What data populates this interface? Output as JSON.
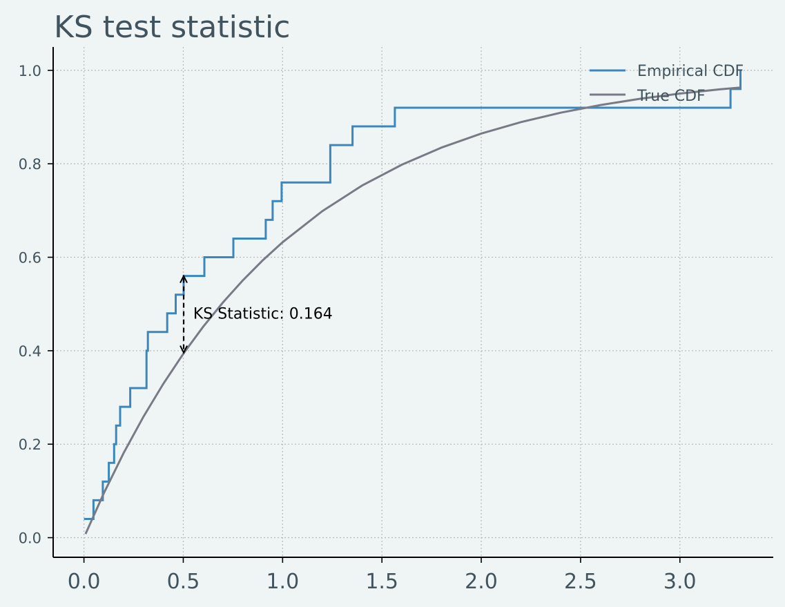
{
  "chart_data": {
    "type": "line",
    "title": "KS test statistic",
    "xlabel": "",
    "ylabel": "",
    "xlim": [
      -0.155,
      3.47
    ],
    "ylim": [
      -0.042,
      1.05
    ],
    "xticks": [
      0.0,
      0.5,
      1.0,
      1.5,
      2.0,
      2.5,
      3.0
    ],
    "xtick_labels": [
      "0.0",
      "0.5",
      "1.0",
      "1.5",
      "2.0",
      "2.5",
      "3.0"
    ],
    "yticks": [
      0.0,
      0.2,
      0.4,
      0.6,
      0.8,
      1.0
    ],
    "ytick_labels": [
      "0.0",
      "0.2",
      "0.4",
      "0.6",
      "0.8",
      "1.0"
    ],
    "grid": true,
    "legend_position": "top-right",
    "series": [
      {
        "name": "Empirical CDF",
        "kind": "step",
        "color": "#3a87bd",
        "x": [
          0.0,
          0.048,
          0.048,
          0.095,
          0.095,
          0.125,
          0.125,
          0.152,
          0.152,
          0.162,
          0.162,
          0.182,
          0.182,
          0.233,
          0.233,
          0.315,
          0.315,
          0.322,
          0.322,
          0.419,
          0.419,
          0.462,
          0.462,
          0.502,
          0.502,
          0.606,
          0.606,
          0.752,
          0.752,
          0.915,
          0.915,
          0.95,
          0.95,
          0.995,
          0.995,
          1.24,
          1.24,
          1.352,
          1.352,
          1.565,
          1.565,
          3.255,
          3.255,
          3.305,
          3.305
        ],
        "y": [
          0.04,
          0.04,
          0.08,
          0.08,
          0.12,
          0.12,
          0.16,
          0.16,
          0.2,
          0.2,
          0.24,
          0.24,
          0.28,
          0.28,
          0.32,
          0.32,
          0.4,
          0.4,
          0.44,
          0.44,
          0.48,
          0.48,
          0.52,
          0.52,
          0.56,
          0.56,
          0.6,
          0.6,
          0.64,
          0.64,
          0.68,
          0.68,
          0.72,
          0.72,
          0.76,
          0.76,
          0.84,
          0.84,
          0.88,
          0.88,
          0.92,
          0.92,
          0.96,
          0.96,
          1.0
        ]
      },
      {
        "name": "True CDF",
        "kind": "line",
        "color": "#787b86",
        "x": [
          0.008,
          0.1,
          0.2,
          0.3,
          0.4,
          0.5,
          0.6,
          0.7,
          0.8,
          0.9,
          1.0,
          1.2,
          1.4,
          1.6,
          1.8,
          2.0,
          2.2,
          2.4,
          2.6,
          2.8,
          3.0,
          3.2,
          3.305
        ],
        "y": [
          0.008,
          0.0952,
          0.1813,
          0.2592,
          0.3297,
          0.3935,
          0.4512,
          0.5034,
          0.5507,
          0.5934,
          0.6321,
          0.6988,
          0.7534,
          0.7981,
          0.8347,
          0.8647,
          0.8892,
          0.9093,
          0.9257,
          0.9392,
          0.9502,
          0.9592,
          0.9633
        ]
      }
    ],
    "annotation": {
      "text": "KS Statistic: 0.164",
      "x": 0.502,
      "y_low": 0.396,
      "y_high": 0.56,
      "text_x": 0.55,
      "text_y": 0.48
    }
  }
}
